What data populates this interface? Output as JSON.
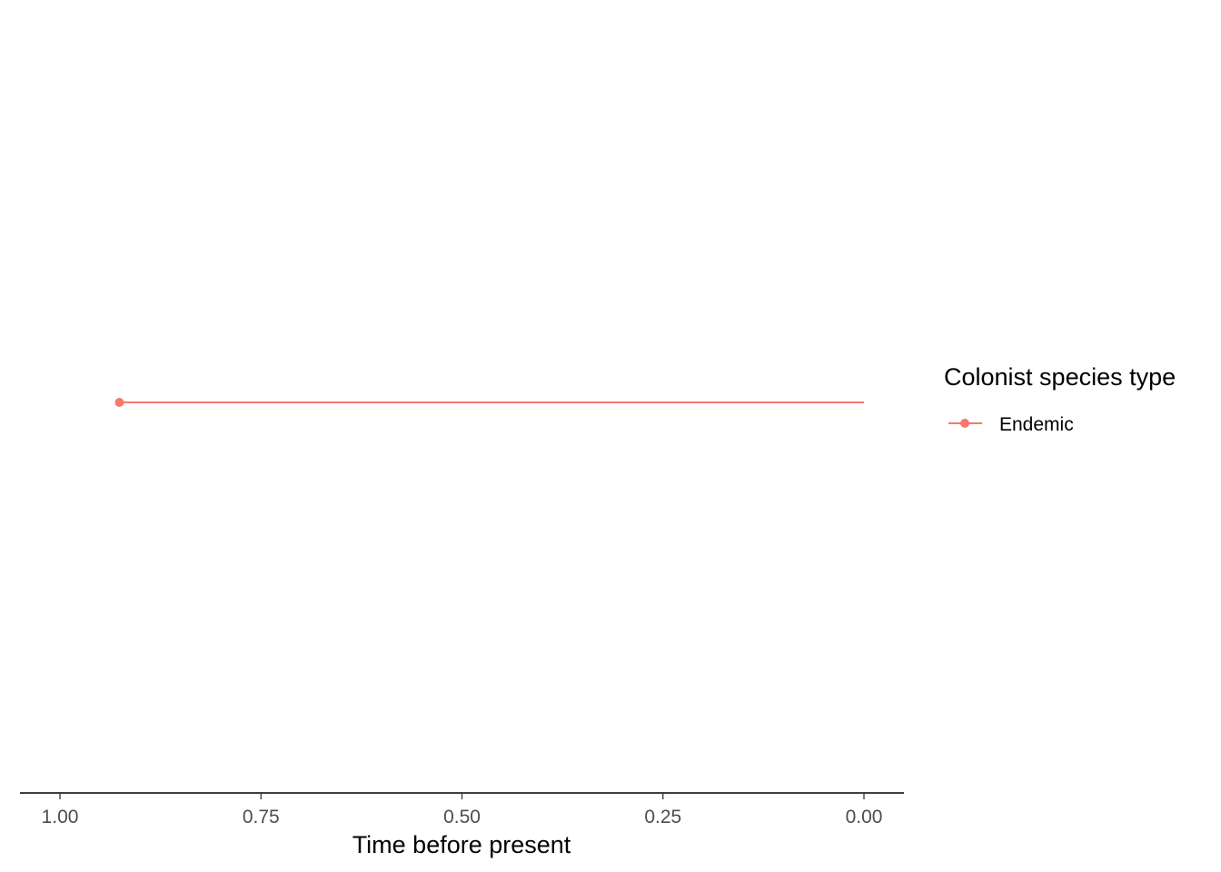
{
  "chart_data": {
    "type": "line",
    "title": "",
    "xlabel": "Time before present",
    "ylabel": "",
    "x_reversed": true,
    "xlim": [
      1.0,
      0.0
    ],
    "x_ticks": [
      "1.00",
      "0.75",
      "0.50",
      "0.25",
      "0.00"
    ],
    "x_tick_values": [
      1.0,
      0.75,
      0.5,
      0.25,
      0.0
    ],
    "grid": false,
    "legend": {
      "title": "Colonist species type",
      "placement": "right",
      "entries": [
        "Endemic"
      ]
    },
    "series": [
      {
        "name": "Endemic",
        "color": "#f8766d",
        "x_start": 0.926,
        "x_end": 0.0,
        "start_marker": true
      }
    ]
  }
}
